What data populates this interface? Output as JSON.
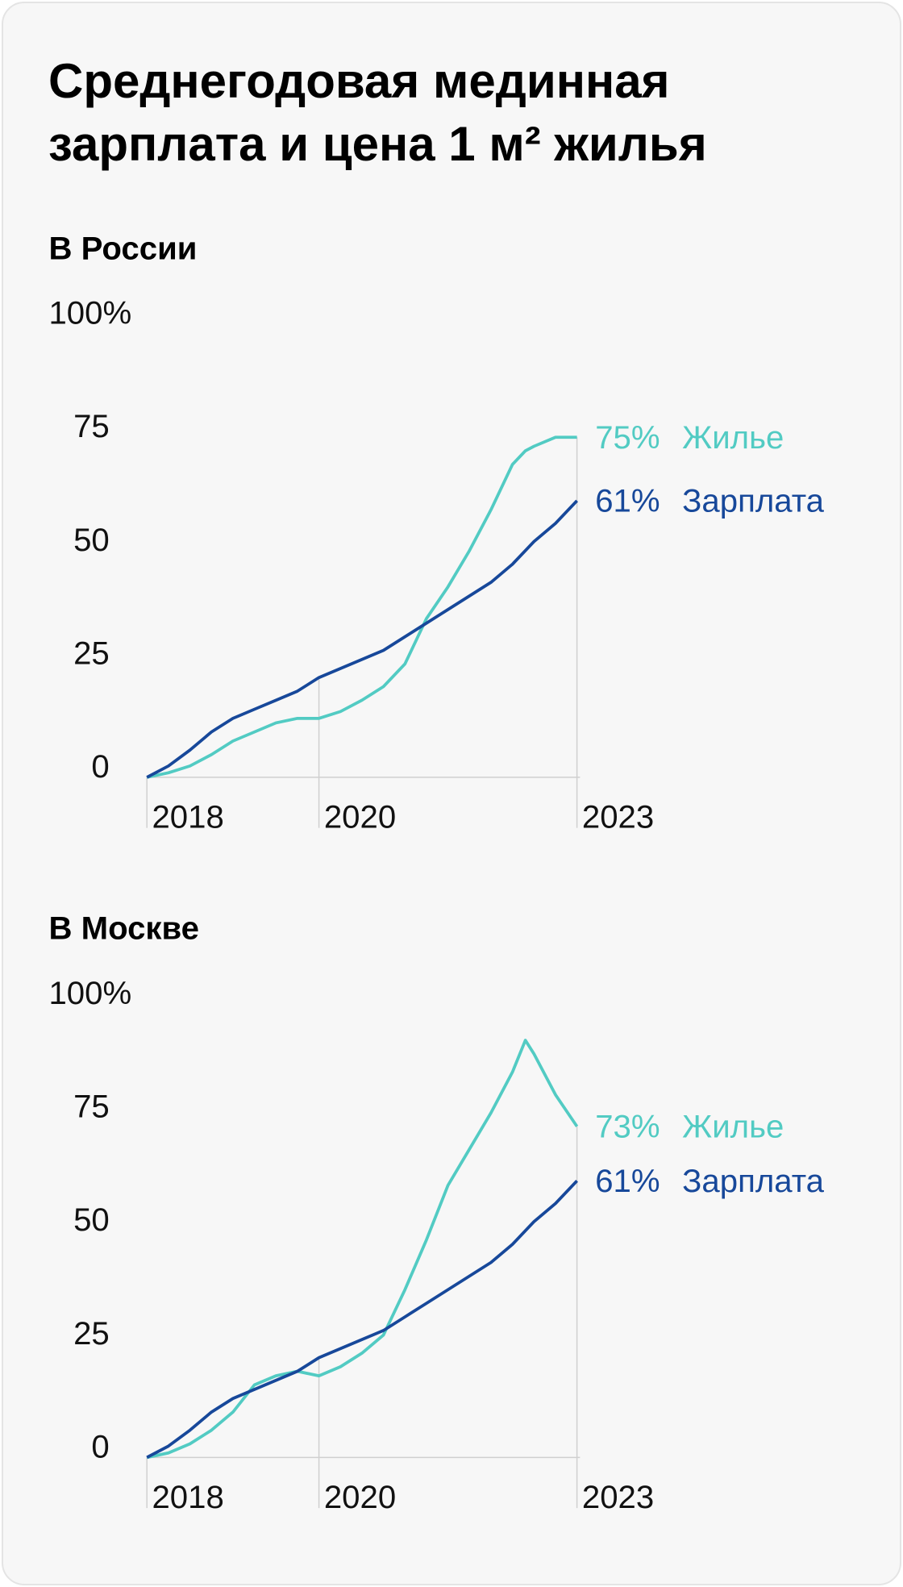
{
  "title": "Среднегодовая мединная зарплата и цена 1 м² жилья",
  "chart_data": [
    {
      "type": "line",
      "subtitle": "В России",
      "x": [
        2018,
        2018.25,
        2018.5,
        2018.75,
        2019,
        2019.25,
        2019.5,
        2019.75,
        2020,
        2020.25,
        2020.5,
        2020.75,
        2021,
        2021.25,
        2021.5,
        2021.75,
        2022,
        2022.25,
        2022.4,
        2022.5,
        2022.75,
        2023
      ],
      "xlim": [
        2018,
        2023
      ],
      "xticks": [
        2018,
        2020,
        2023
      ],
      "ylim": [
        0,
        100
      ],
      "yticks": [
        0,
        25,
        50,
        75,
        {
          "value": 100,
          "label": "100%"
        }
      ],
      "series": [
        {
          "name": "Жилье",
          "color": "#52cbc3",
          "values": [
            0,
            1,
            2.5,
            5,
            8,
            10,
            12,
            13,
            13,
            14.5,
            17,
            20,
            25,
            35,
            42,
            50,
            59,
            69,
            72,
            73,
            75,
            75
          ],
          "value_labels": [
            null,
            null,
            null,
            null,
            null,
            null,
            null,
            null,
            null,
            null,
            null,
            null,
            null,
            null,
            null,
            null,
            null,
            null,
            null,
            null,
            null,
            "75%"
          ]
        },
        {
          "name": "Зарплата",
          "color": "#17489a",
          "values": [
            0,
            2.5,
            6,
            10,
            13,
            15,
            17,
            19,
            22,
            24,
            26,
            28,
            31,
            34,
            37,
            40,
            43,
            47,
            50,
            52,
            56,
            61
          ],
          "value_labels": [
            null,
            null,
            null,
            null,
            null,
            null,
            null,
            null,
            null,
            null,
            null,
            null,
            null,
            null,
            null,
            null,
            null,
            null,
            null,
            null,
            null,
            "61%"
          ]
        }
      ]
    },
    {
      "type": "line",
      "subtitle": "В Москве",
      "x": [
        2018,
        2018.25,
        2018.5,
        2018.75,
        2019,
        2019.25,
        2019.5,
        2019.75,
        2020,
        2020.25,
        2020.5,
        2020.75,
        2021,
        2021.25,
        2021.5,
        2021.75,
        2022,
        2022.25,
        2022.4,
        2022.5,
        2022.75,
        2023
      ],
      "xlim": [
        2018,
        2023
      ],
      "xticks": [
        2018,
        2020,
        2023
      ],
      "ylim": [
        0,
        100
      ],
      "yticks": [
        0,
        25,
        50,
        75,
        {
          "value": 100,
          "label": "100%"
        }
      ],
      "series": [
        {
          "name": "Жилье",
          "color": "#52cbc3",
          "values": [
            0,
            1,
            3,
            6,
            10,
            16,
            18,
            19,
            18,
            20,
            23,
            27,
            37,
            48,
            60,
            68,
            76,
            85,
            92,
            89,
            80,
            73
          ],
          "value_labels": [
            null,
            null,
            null,
            null,
            null,
            null,
            null,
            null,
            null,
            null,
            null,
            null,
            null,
            null,
            null,
            null,
            null,
            null,
            null,
            null,
            null,
            "73%"
          ]
        },
        {
          "name": "Зарплата",
          "color": "#17489a",
          "values": [
            0,
            2.5,
            6,
            10,
            13,
            15,
            17,
            19,
            22,
            24,
            26,
            28,
            31,
            34,
            37,
            40,
            43,
            47,
            50,
            52,
            56,
            61
          ],
          "value_labels": [
            null,
            null,
            null,
            null,
            null,
            null,
            null,
            null,
            null,
            null,
            null,
            null,
            null,
            null,
            null,
            null,
            null,
            null,
            null,
            null,
            null,
            "61%"
          ]
        }
      ]
    }
  ]
}
